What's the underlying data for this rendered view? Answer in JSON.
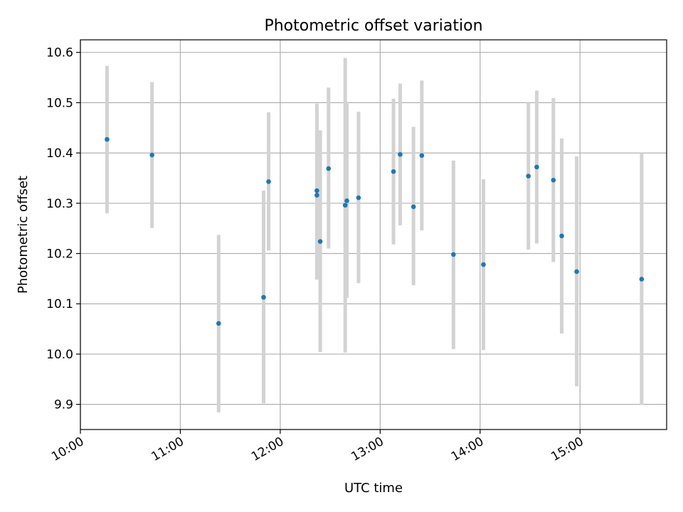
{
  "chart_data": {
    "type": "scatter",
    "title": "Photometric offset variation",
    "xlabel": "UTC time",
    "ylabel": "Photometric offset",
    "xlim": [
      "10:00",
      "15:52"
    ],
    "ylim": [
      9.85,
      10.625
    ],
    "grid": true,
    "xticks": [
      "10:00",
      "11:00",
      "12:00",
      "13:00",
      "14:00",
      "15:00"
    ],
    "yticks": [
      "9.9",
      "10.0",
      "10.1",
      "10.2",
      "10.3",
      "10.4",
      "10.5",
      "10.6"
    ],
    "point_color": "#1f77b4",
    "errorbar_color": "#d3d3d3",
    "grid_color": "#b0b0b0",
    "points": [
      {
        "x": "10:16",
        "y": 10.427,
        "lo": 10.28,
        "hi": 10.573
      },
      {
        "x": "10:43",
        "y": 10.396,
        "lo": 10.251,
        "hi": 10.541
      },
      {
        "x": "11:23",
        "y": 10.061,
        "lo": 9.884,
        "hi": 10.237
      },
      {
        "x": "11:50",
        "y": 10.113,
        "lo": 9.902,
        "hi": 10.325
      },
      {
        "x": "11:53",
        "y": 10.343,
        "lo": 10.206,
        "hi": 10.481
      },
      {
        "x": "12:22",
        "y": 10.325,
        "lo": 10.151,
        "hi": 10.498
      },
      {
        "x": "12:22",
        "y": 10.316,
        "lo": 10.148,
        "hi": 10.484
      },
      {
        "x": "12:24",
        "y": 10.224,
        "lo": 10.004,
        "hi": 10.445
      },
      {
        "x": "12:29",
        "y": 10.369,
        "lo": 10.21,
        "hi": 10.53
      },
      {
        "x": "12:39",
        "y": 10.296,
        "lo": 10.003,
        "hi": 10.589
      },
      {
        "x": "12:40",
        "y": 10.305,
        "lo": 10.112,
        "hi": 10.498
      },
      {
        "x": "12:47",
        "y": 10.311,
        "lo": 10.141,
        "hi": 10.482
      },
      {
        "x": "13:08",
        "y": 10.363,
        "lo": 10.218,
        "hi": 10.508
      },
      {
        "x": "13:12",
        "y": 10.397,
        "lo": 10.256,
        "hi": 10.538
      },
      {
        "x": "13:20",
        "y": 10.293,
        "lo": 10.137,
        "hi": 10.452
      },
      {
        "x": "13:25",
        "y": 10.395,
        "lo": 10.246,
        "hi": 10.544
      },
      {
        "x": "13:44",
        "y": 10.198,
        "lo": 10.01,
        "hi": 10.385
      },
      {
        "x": "14:02",
        "y": 10.178,
        "lo": 10.008,
        "hi": 10.348
      },
      {
        "x": "14:29",
        "y": 10.354,
        "lo": 10.208,
        "hi": 10.5
      },
      {
        "x": "14:34",
        "y": 10.372,
        "lo": 10.22,
        "hi": 10.524
      },
      {
        "x": "14:44",
        "y": 10.346,
        "lo": 10.183,
        "hi": 10.509
      },
      {
        "x": "14:49",
        "y": 10.235,
        "lo": 10.041,
        "hi": 10.429
      },
      {
        "x": "14:58",
        "y": 10.164,
        "lo": 9.936,
        "hi": 10.393
      },
      {
        "x": "15:37",
        "y": 10.149,
        "lo": 9.899,
        "hi": 10.4
      }
    ]
  }
}
